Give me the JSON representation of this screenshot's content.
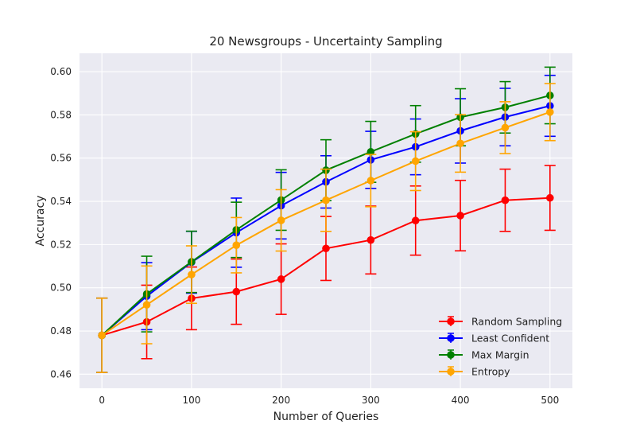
{
  "chart_data": {
    "type": "line",
    "title": "20 Newsgroups - Uncertainty Sampling",
    "xlabel": "Number of Queries",
    "ylabel": "Accuracy",
    "xlim": [
      -25,
      525
    ],
    "ylim": [
      0.4535,
      0.6085
    ],
    "xticks": [
      0,
      100,
      200,
      300,
      400,
      500
    ],
    "yticks": [
      0.46,
      0.48,
      0.5,
      0.52,
      0.54,
      0.56,
      0.58,
      0.6
    ],
    "xtick_labels": [
      "0",
      "100",
      "200",
      "300",
      "400",
      "500"
    ],
    "ytick_labels": [
      "0.46",
      "0.48",
      "0.50",
      "0.52",
      "0.54",
      "0.56",
      "0.58",
      "0.60"
    ],
    "grid": true,
    "background": "#eaeaf2",
    "legend_position": "lower-right",
    "x": [
      0,
      50,
      100,
      150,
      200,
      250,
      300,
      350,
      400,
      450,
      500
    ],
    "series": [
      {
        "name": "Random Sampling",
        "color": "#ff0000",
        "values": [
          0.478,
          0.4842,
          0.4951,
          0.4982,
          0.504,
          0.5182,
          0.5221,
          0.5311,
          0.5334,
          0.5405,
          0.5416
        ],
        "errors": [
          0.0172,
          0.017,
          0.0145,
          0.0151,
          0.0163,
          0.0148,
          0.0157,
          0.016,
          0.0163,
          0.0144,
          0.015
        ]
      },
      {
        "name": "Least Confident",
        "color": "#0000ff",
        "values": [
          0.478,
          0.4961,
          0.5118,
          0.5255,
          0.538,
          0.549,
          0.5592,
          0.5652,
          0.5726,
          0.579,
          0.5842
        ],
        "errors": [
          0.0172,
          0.0155,
          0.0143,
          0.016,
          0.0154,
          0.0121,
          0.0132,
          0.0129,
          0.0149,
          0.0133,
          0.0141
        ]
      },
      {
        "name": "Max Margin",
        "color": "#008000",
        "values": [
          0.478,
          0.4971,
          0.512,
          0.5268,
          0.5406,
          0.5544,
          0.5629,
          0.5712,
          0.5789,
          0.5835,
          0.589
        ],
        "errors": [
          0.0172,
          0.0175,
          0.0142,
          0.0128,
          0.014,
          0.0141,
          0.0141,
          0.0131,
          0.0132,
          0.0119,
          0.0131
        ]
      },
      {
        "name": "Entropy",
        "color": "#ffa500",
        "values": [
          0.478,
          0.4921,
          0.5061,
          0.5197,
          0.5312,
          0.5405,
          0.5496,
          0.5586,
          0.5668,
          0.5741,
          0.5813
        ],
        "errors": [
          0.0172,
          0.018,
          0.0133,
          0.0128,
          0.0142,
          0.0144,
          0.0121,
          0.0136,
          0.0133,
          0.012,
          0.0132
        ]
      }
    ]
  }
}
